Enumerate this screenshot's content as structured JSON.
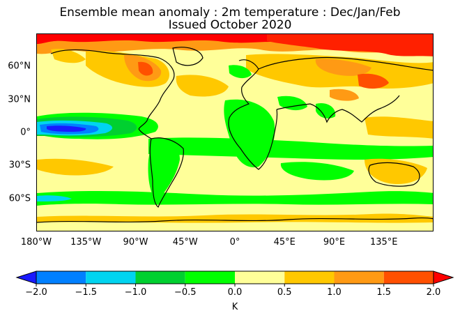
{
  "title_line1": "Ensemble mean anomaly : 2m temperature : Dec/Jan/Feb",
  "title_line2": "Issued October 2020",
  "lat_labels": [
    "60°N",
    "30°N",
    "0°",
    "30°S",
    "60°S"
  ],
  "lat_values": [
    60,
    30,
    0,
    -30,
    -60
  ],
  "lon_labels": [
    "180°W",
    "135°W",
    "90°W",
    "45°W",
    "0°",
    "45°E",
    "90°E",
    "135°E"
  ],
  "lon_values": [
    -180,
    -135,
    -90,
    -45,
    0,
    45,
    90,
    135
  ],
  "colorbar": {
    "unit": "K",
    "ticks": [
      "−2.0",
      "−1.5",
      "−1.0",
      "−0.5",
      "0.0",
      "0.5",
      "1.0",
      "1.5",
      "2.0"
    ],
    "bins": [
      {
        "range": "< -2.0",
        "color": "#1a1aff"
      },
      {
        "range": "-2.0 to -1.5",
        "color": "#0080ff"
      },
      {
        "range": "-1.5 to -1.0",
        "color": "#00d4f0"
      },
      {
        "range": "-1.0 to -0.5",
        "color": "#00d030"
      },
      {
        "range": "-0.5 to 0.0",
        "color": "#00ff00"
      },
      {
        "range": "0.0 to 0.5",
        "color": "#ffff99"
      },
      {
        "range": "0.5 to 1.0",
        "color": "#ffc800"
      },
      {
        "range": "1.0 to 1.5",
        "color": "#ff9a14"
      },
      {
        "range": "1.5 to 2.0",
        "color": "#ff5000"
      },
      {
        "range": "> 2.0",
        "color": "#ff0000"
      }
    ]
  }
}
